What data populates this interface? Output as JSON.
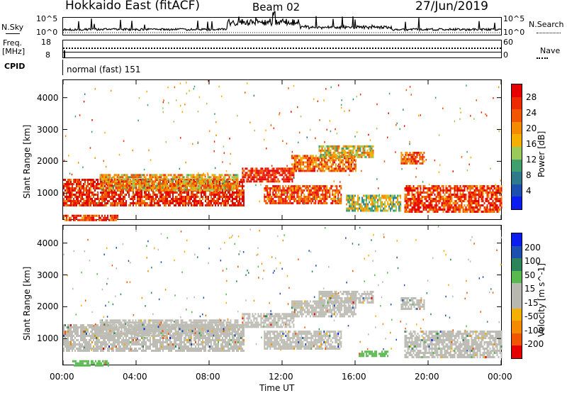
{
  "header": {
    "title": "Hokkaido East (fitACF)",
    "beam": "Beam 02",
    "date": "27/Jun/2019"
  },
  "top_panels": {
    "nsky_label": "N.Sky",
    "nsky_ticks": [
      "10^5",
      "10^0"
    ],
    "nsearch_label": "N.Search",
    "nsearch_ticks": [
      "10^5",
      "10^0"
    ],
    "freq_label_1": "Freq.",
    "freq_label_2": "[MHz]",
    "freq_ticks": [
      "18",
      "8"
    ],
    "nave_label": "Nave",
    "nave_ticks": [
      "60",
      "0"
    ],
    "cpid_label": "CPID",
    "cpid_value": "normal (fast) 151"
  },
  "colors": {
    "power": [
      "#0a1cf0",
      "#1d4fb0",
      "#2e7a8c",
      "#3f9f6f",
      "#9acb5a",
      "#f4b000",
      "#f38a00",
      "#f15500",
      "#ee2b00",
      "#e60000"
    ],
    "velocity": [
      "#0a1cf0",
      "#1d4fb0",
      "#2b8558",
      "#58b94e",
      "#b8b8b0",
      "#b8b8b0",
      "#f4b000",
      "#f38a00",
      "#f15500",
      "#e60000"
    ],
    "gray": "#bdbdb5"
  },
  "chart_data": [
    {
      "type": "heatmap",
      "name": "Power",
      "ylabel": "Slant Range [km]",
      "xlabel": "Time UT",
      "x_ticks": [
        "00:00",
        "04:00",
        "08:00",
        "12:00",
        "16:00",
        "20:00",
        "00:00"
      ],
      "y_ticks": [
        "1000",
        "2000",
        "3000",
        "4000"
      ],
      "xlim_hours": [
        0,
        24
      ],
      "ylim_km": [
        180,
        4550
      ],
      "colorbar_label": "Power [dB]",
      "colorbar_ticks": [
        "28",
        "24",
        "20",
        "16",
        "12",
        "8",
        "4"
      ],
      "colorbar_range": [
        0,
        30
      ],
      "regions": [
        {
          "t0": 0.0,
          "t1": 9.9,
          "r0": 620,
          "r1": 1450,
          "level": 26
        },
        {
          "t0": 2.0,
          "t1": 9.6,
          "r0": 1100,
          "r1": 1600,
          "level": 18
        },
        {
          "t0": 9.8,
          "t1": 12.6,
          "r0": 1350,
          "r1": 1800,
          "level": 27
        },
        {
          "t0": 11.0,
          "t1": 15.2,
          "r0": 700,
          "r1": 1250,
          "level": 24
        },
        {
          "t0": 12.5,
          "t1": 16.0,
          "r0": 1700,
          "r1": 2200,
          "level": 22
        },
        {
          "t0": 14.0,
          "t1": 17.0,
          "r0": 2100,
          "r1": 2500,
          "level": 16
        },
        {
          "t0": 15.5,
          "t1": 18.5,
          "r0": 450,
          "r1": 950,
          "level": 14
        },
        {
          "t0": 18.7,
          "t1": 24.0,
          "r0": 420,
          "r1": 1250,
          "level": 25
        },
        {
          "t0": 18.5,
          "t1": 19.8,
          "r0": 1950,
          "r1": 2300,
          "level": 22
        },
        {
          "t0": 0.0,
          "t1": 3.0,
          "r0": 180,
          "r1": 320,
          "level": 24
        }
      ]
    },
    {
      "type": "heatmap",
      "name": "Velocity",
      "ylabel": "Slant Range [km]",
      "xlabel": "Time UT",
      "x_ticks": [
        "00:00",
        "04:00",
        "08:00",
        "12:00",
        "16:00",
        "20:00",
        "00:00"
      ],
      "y_ticks": [
        "1000",
        "2000",
        "3000",
        "4000"
      ],
      "xlim_hours": [
        0,
        24
      ],
      "ylim_km": [
        180,
        4550
      ],
      "colorbar_label": "Velocity [m s^-1]",
      "colorbar_ticks": [
        "200",
        "100",
        "50",
        "15",
        "-15",
        "-50",
        "-100",
        "-200"
      ],
      "colorbar_range": [
        -250,
        250
      ],
      "regions": [
        {
          "t0": 0.0,
          "t1": 9.9,
          "r0": 620,
          "r1": 1450,
          "level": 0
        },
        {
          "t0": 2.0,
          "t1": 9.6,
          "r0": 1100,
          "r1": 1600,
          "level": 0
        },
        {
          "t0": 9.8,
          "t1": 12.6,
          "r0": 1350,
          "r1": 1800,
          "level": 0
        },
        {
          "t0": 11.0,
          "t1": 15.2,
          "r0": 700,
          "r1": 1250,
          "level": 0
        },
        {
          "t0": 12.5,
          "t1": 16.0,
          "r0": 1700,
          "r1": 2200,
          "level": 0
        },
        {
          "t0": 14.0,
          "t1": 17.0,
          "r0": 2100,
          "r1": 2500,
          "level": 0
        },
        {
          "t0": 16.2,
          "t1": 17.8,
          "r0": 420,
          "r1": 620,
          "level": 60
        },
        {
          "t0": 18.7,
          "t1": 24.0,
          "r0": 420,
          "r1": 1250,
          "level": 0
        },
        {
          "t0": 18.5,
          "t1": 19.8,
          "r0": 1950,
          "r1": 2300,
          "level": -40
        },
        {
          "t0": 0.5,
          "t1": 2.5,
          "r0": 180,
          "r1": 320,
          "level": 60
        }
      ]
    }
  ]
}
